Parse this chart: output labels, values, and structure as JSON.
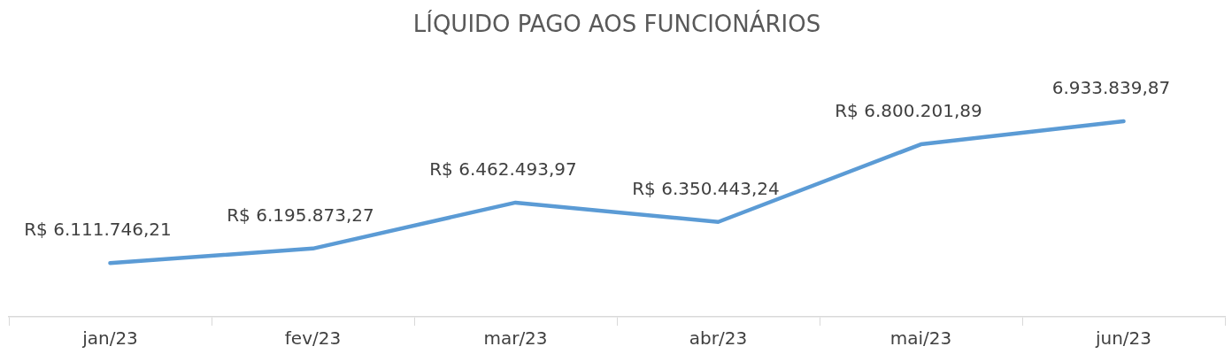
{
  "chart_data": {
    "type": "line",
    "title": "LÍQUIDO PAGO AOS FUNCIONÁRIOS",
    "categories": [
      "jan/23",
      "fev/23",
      "mar/23",
      "abr/23",
      "mai/23",
      "jun/23"
    ],
    "series": [
      {
        "color": "#5b9bd5",
        "values": [
          6111746.21,
          6195873.27,
          6462493.97,
          6350443.24,
          6800201.89,
          6933839.87
        ],
        "value_labels": [
          "R$ 6.111.746,21",
          "R$ 6.195.873,27",
          "R$ 6.462.493,97",
          "R$ 6.350.443,24",
          "R$ 6.800.201,89",
          "6.933.839,87"
        ]
      }
    ],
    "tick_labels": "x",
    "grid": false,
    "legend": false,
    "marker": "none",
    "line_style": "solid"
  }
}
